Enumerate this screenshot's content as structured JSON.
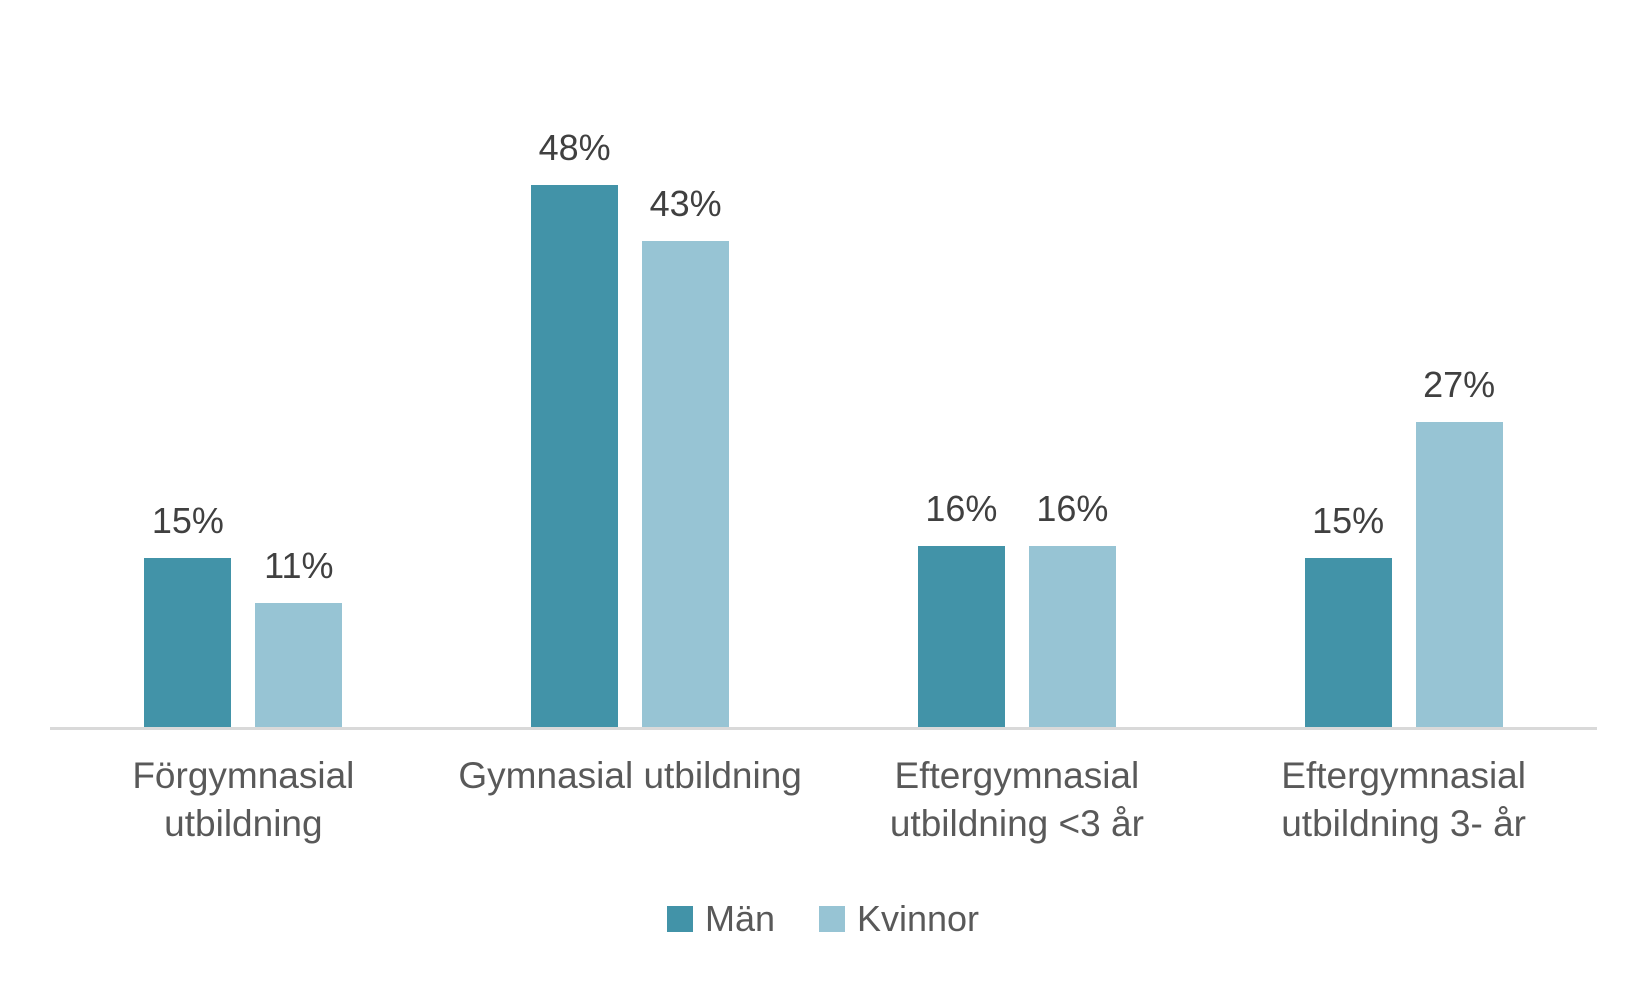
{
  "chart_data": {
    "type": "bar",
    "title": "",
    "xlabel": "",
    "ylabel": "",
    "categories": [
      "Förgymnasial utbildning",
      "Gymnasial utbildning",
      "Eftergymnasial utbildning <3 år",
      "Eftergymnasial utbildning 3- år"
    ],
    "series": [
      {
        "name": "Män",
        "color": "#4293A8",
        "values": [
          15,
          48,
          16,
          15
        ],
        "labels": [
          "15%",
          "48%",
          "16%",
          "15%"
        ]
      },
      {
        "name": "Kvinnor",
        "color": "#97C4D4",
        "values": [
          11,
          43,
          16,
          27
        ],
        "labels": [
          "11%",
          "43%",
          "16%",
          "27%"
        ]
      }
    ],
    "ylim": [
      0,
      55
    ],
    "grid": false,
    "axis_ticks_visible": false,
    "legend_position": "bottom",
    "colors": {
      "background": "#FFFFFF",
      "axis_line": "#D9D9D9",
      "data_label_text": "#404040",
      "category_label_text": "#595959",
      "legend_text": "#595959"
    }
  }
}
